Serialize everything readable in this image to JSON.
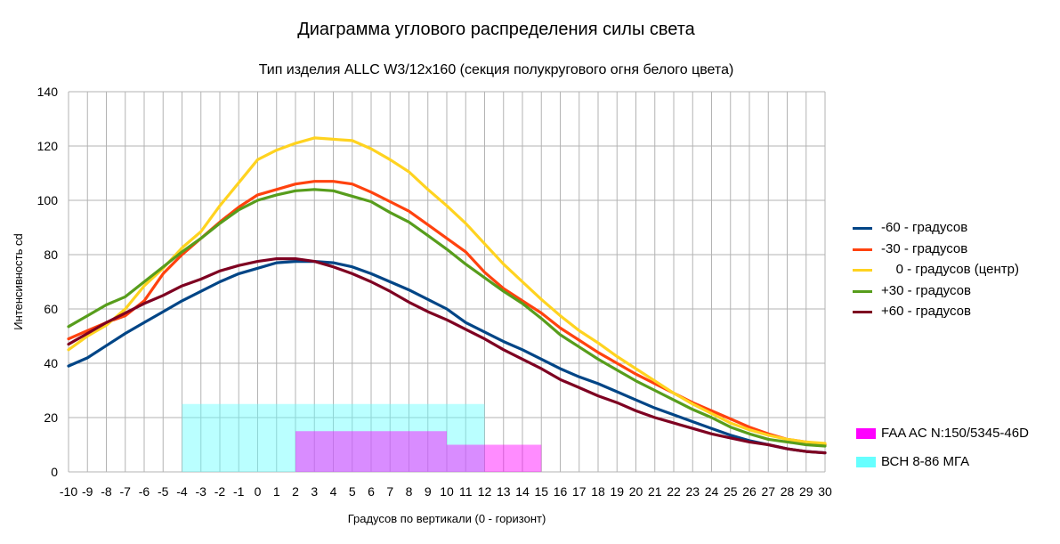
{
  "chart_data": {
    "type": "line",
    "title": "Диаграмма углового распределения силы света",
    "subtitle": "Тип изделия ALLC W3/12x160 (секция полукругового огня белого цвета)",
    "xlabel": "Градусов по вертикали (0 - горизонт)",
    "ylabel": "Интенсивность cd",
    "xlim": [
      -10,
      30
    ],
    "ylim": [
      0,
      140
    ],
    "yticks": [
      0,
      20,
      40,
      60,
      80,
      100,
      120,
      140
    ],
    "x": [
      -10,
      -9,
      -8,
      -7,
      -6,
      -5,
      -4,
      -3,
      -2,
      -1,
      0,
      1,
      2,
      3,
      4,
      5,
      6,
      7,
      8,
      9,
      10,
      11,
      12,
      13,
      14,
      15,
      16,
      17,
      18,
      19,
      20,
      21,
      22,
      23,
      24,
      25,
      26,
      27,
      28,
      29,
      30
    ],
    "grid": true,
    "legend_position": "right",
    "series": [
      {
        "name": "-60 - градусов",
        "color": "#004586",
        "values": [
          39,
          42,
          46.5,
          51,
          55,
          59,
          63,
          66.5,
          70,
          73,
          75,
          77,
          77.5,
          77.5,
          77,
          75.5,
          73,
          70,
          67,
          63.5,
          60,
          55,
          51.5,
          48,
          45,
          41.5,
          38,
          35,
          32.5,
          29.5,
          26.5,
          23.5,
          21,
          18.5,
          16,
          13.5,
          11.5,
          10,
          8.5,
          7.5,
          7
        ]
      },
      {
        "name": "-30 - градусов",
        "color": "#ff420e",
        "values": [
          49,
          52,
          55,
          57.5,
          63,
          73,
          80,
          86,
          92,
          97.5,
          102,
          104,
          106,
          107,
          107,
          106,
          103,
          99.5,
          96,
          91,
          86,
          81,
          73.5,
          67.5,
          63,
          58.5,
          53,
          48.5,
          44,
          40,
          36,
          32.5,
          29,
          25.5,
          22.5,
          19.5,
          16.5,
          14,
          12,
          11,
          10
        ]
      },
      {
        "name": "    0 - градусов (центр)",
        "color": "#ffd320",
        "values": [
          45,
          50,
          54,
          60,
          68.5,
          75,
          82.5,
          88.5,
          98,
          106.5,
          115,
          118.5,
          121,
          123,
          122.5,
          122,
          119,
          115,
          110.5,
          104,
          98,
          91.5,
          84,
          76.5,
          70,
          63.5,
          57.5,
          52,
          47.5,
          42.5,
          38,
          33.5,
          29,
          25,
          21.5,
          18,
          15.5,
          13.5,
          12,
          11,
          10.5
        ]
      },
      {
        "name": "+30 - градусов",
        "color": "#579d1c",
        "values": [
          53.5,
          57.5,
          61.5,
          64.5,
          70,
          75.5,
          81,
          86,
          91.5,
          96.5,
          100,
          102,
          103.5,
          104,
          103.5,
          101.5,
          99.5,
          95.5,
          92,
          87,
          82,
          76.5,
          71.5,
          66.5,
          62,
          56.5,
          50.5,
          46,
          41.5,
          37.5,
          33.5,
          30,
          26.5,
          23,
          20,
          16.5,
          14,
          12,
          11,
          10,
          9.5
        ]
      },
      {
        "name": "+60 - градусов",
        "color": "#7e0021",
        "values": [
          47,
          51,
          55,
          58.5,
          62,
          65,
          68.5,
          71,
          74,
          76,
          77.5,
          78.5,
          78.5,
          77.5,
          75.5,
          73,
          70,
          66.5,
          62.5,
          59,
          56,
          52.5,
          49,
          45,
          41.5,
          38,
          34,
          31,
          28,
          25.5,
          22.5,
          20,
          18,
          16,
          14,
          12.5,
          11,
          10,
          8.5,
          7.5,
          7
        ]
      }
    ],
    "regions": [
      {
        "name": "ВСН 8-86 МГА",
        "color": "#66ffff",
        "opacity": 0.45,
        "steps": [
          {
            "x_from": -4,
            "x_to": 12,
            "value": 25
          }
        ]
      },
      {
        "name": "FAA AC N:150/5345-46D",
        "color": "#ff00ff",
        "opacity": 0.45,
        "steps": [
          {
            "x_from": 2,
            "x_to": 10,
            "value": 15
          },
          {
            "x_from": 10,
            "x_to": 15,
            "value": 10
          }
        ]
      }
    ],
    "legend_regions_order": [
      "FAA AC N:150/5345-46D",
      "ВСН 8-86 МГА"
    ],
    "legend_region_colors": [
      "#ff00ff",
      "#66ffff"
    ]
  }
}
